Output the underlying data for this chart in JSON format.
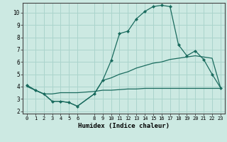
{
  "xlabel": "Humidex (Indice chaleur)",
  "ylabel": "",
  "bg_color": "#cce9e2",
  "grid_color": "#aad4cc",
  "line_color": "#1a6b5e",
  "xlim": [
    -0.5,
    23.5
  ],
  "ylim": [
    1.8,
    10.8
  ],
  "xticks": [
    0,
    1,
    2,
    3,
    4,
    5,
    6,
    8,
    9,
    10,
    11,
    12,
    13,
    14,
    15,
    16,
    17,
    18,
    19,
    20,
    21,
    22,
    23
  ],
  "yticks": [
    2,
    3,
    4,
    5,
    6,
    7,
    8,
    9,
    10
  ],
  "line1_x": [
    0,
    1,
    2,
    3,
    4,
    5,
    6,
    8,
    9,
    10,
    11,
    12,
    13,
    14,
    15,
    16,
    17,
    18,
    19,
    20,
    21,
    22,
    23
  ],
  "line1_y": [
    4.1,
    3.7,
    3.4,
    2.8,
    2.8,
    2.7,
    2.4,
    3.4,
    4.5,
    6.1,
    8.3,
    8.5,
    9.5,
    10.1,
    10.5,
    10.6,
    10.5,
    7.4,
    6.5,
    6.9,
    6.2,
    5.0,
    3.9
  ],
  "line2_x": [
    0,
    1,
    2,
    3,
    4,
    5,
    6,
    8,
    9,
    10,
    11,
    12,
    13,
    14,
    15,
    16,
    17,
    18,
    19,
    20,
    21,
    22,
    23
  ],
  "line2_y": [
    4.1,
    3.7,
    3.4,
    2.8,
    2.8,
    2.7,
    2.4,
    3.4,
    4.5,
    4.7,
    5.0,
    5.2,
    5.5,
    5.7,
    5.9,
    6.0,
    6.2,
    6.3,
    6.4,
    6.5,
    6.4,
    6.3,
    3.9
  ],
  "line3_x": [
    0,
    1,
    2,
    3,
    4,
    5,
    6,
    8,
    9,
    10,
    11,
    12,
    13,
    14,
    15,
    16,
    17,
    18,
    19,
    20,
    21,
    22,
    23
  ],
  "line3_y": [
    4.0,
    3.7,
    3.4,
    3.4,
    3.5,
    3.5,
    3.5,
    3.6,
    3.7,
    3.7,
    3.75,
    3.8,
    3.8,
    3.85,
    3.85,
    3.85,
    3.85,
    3.85,
    3.85,
    3.85,
    3.85,
    3.85,
    3.85
  ]
}
